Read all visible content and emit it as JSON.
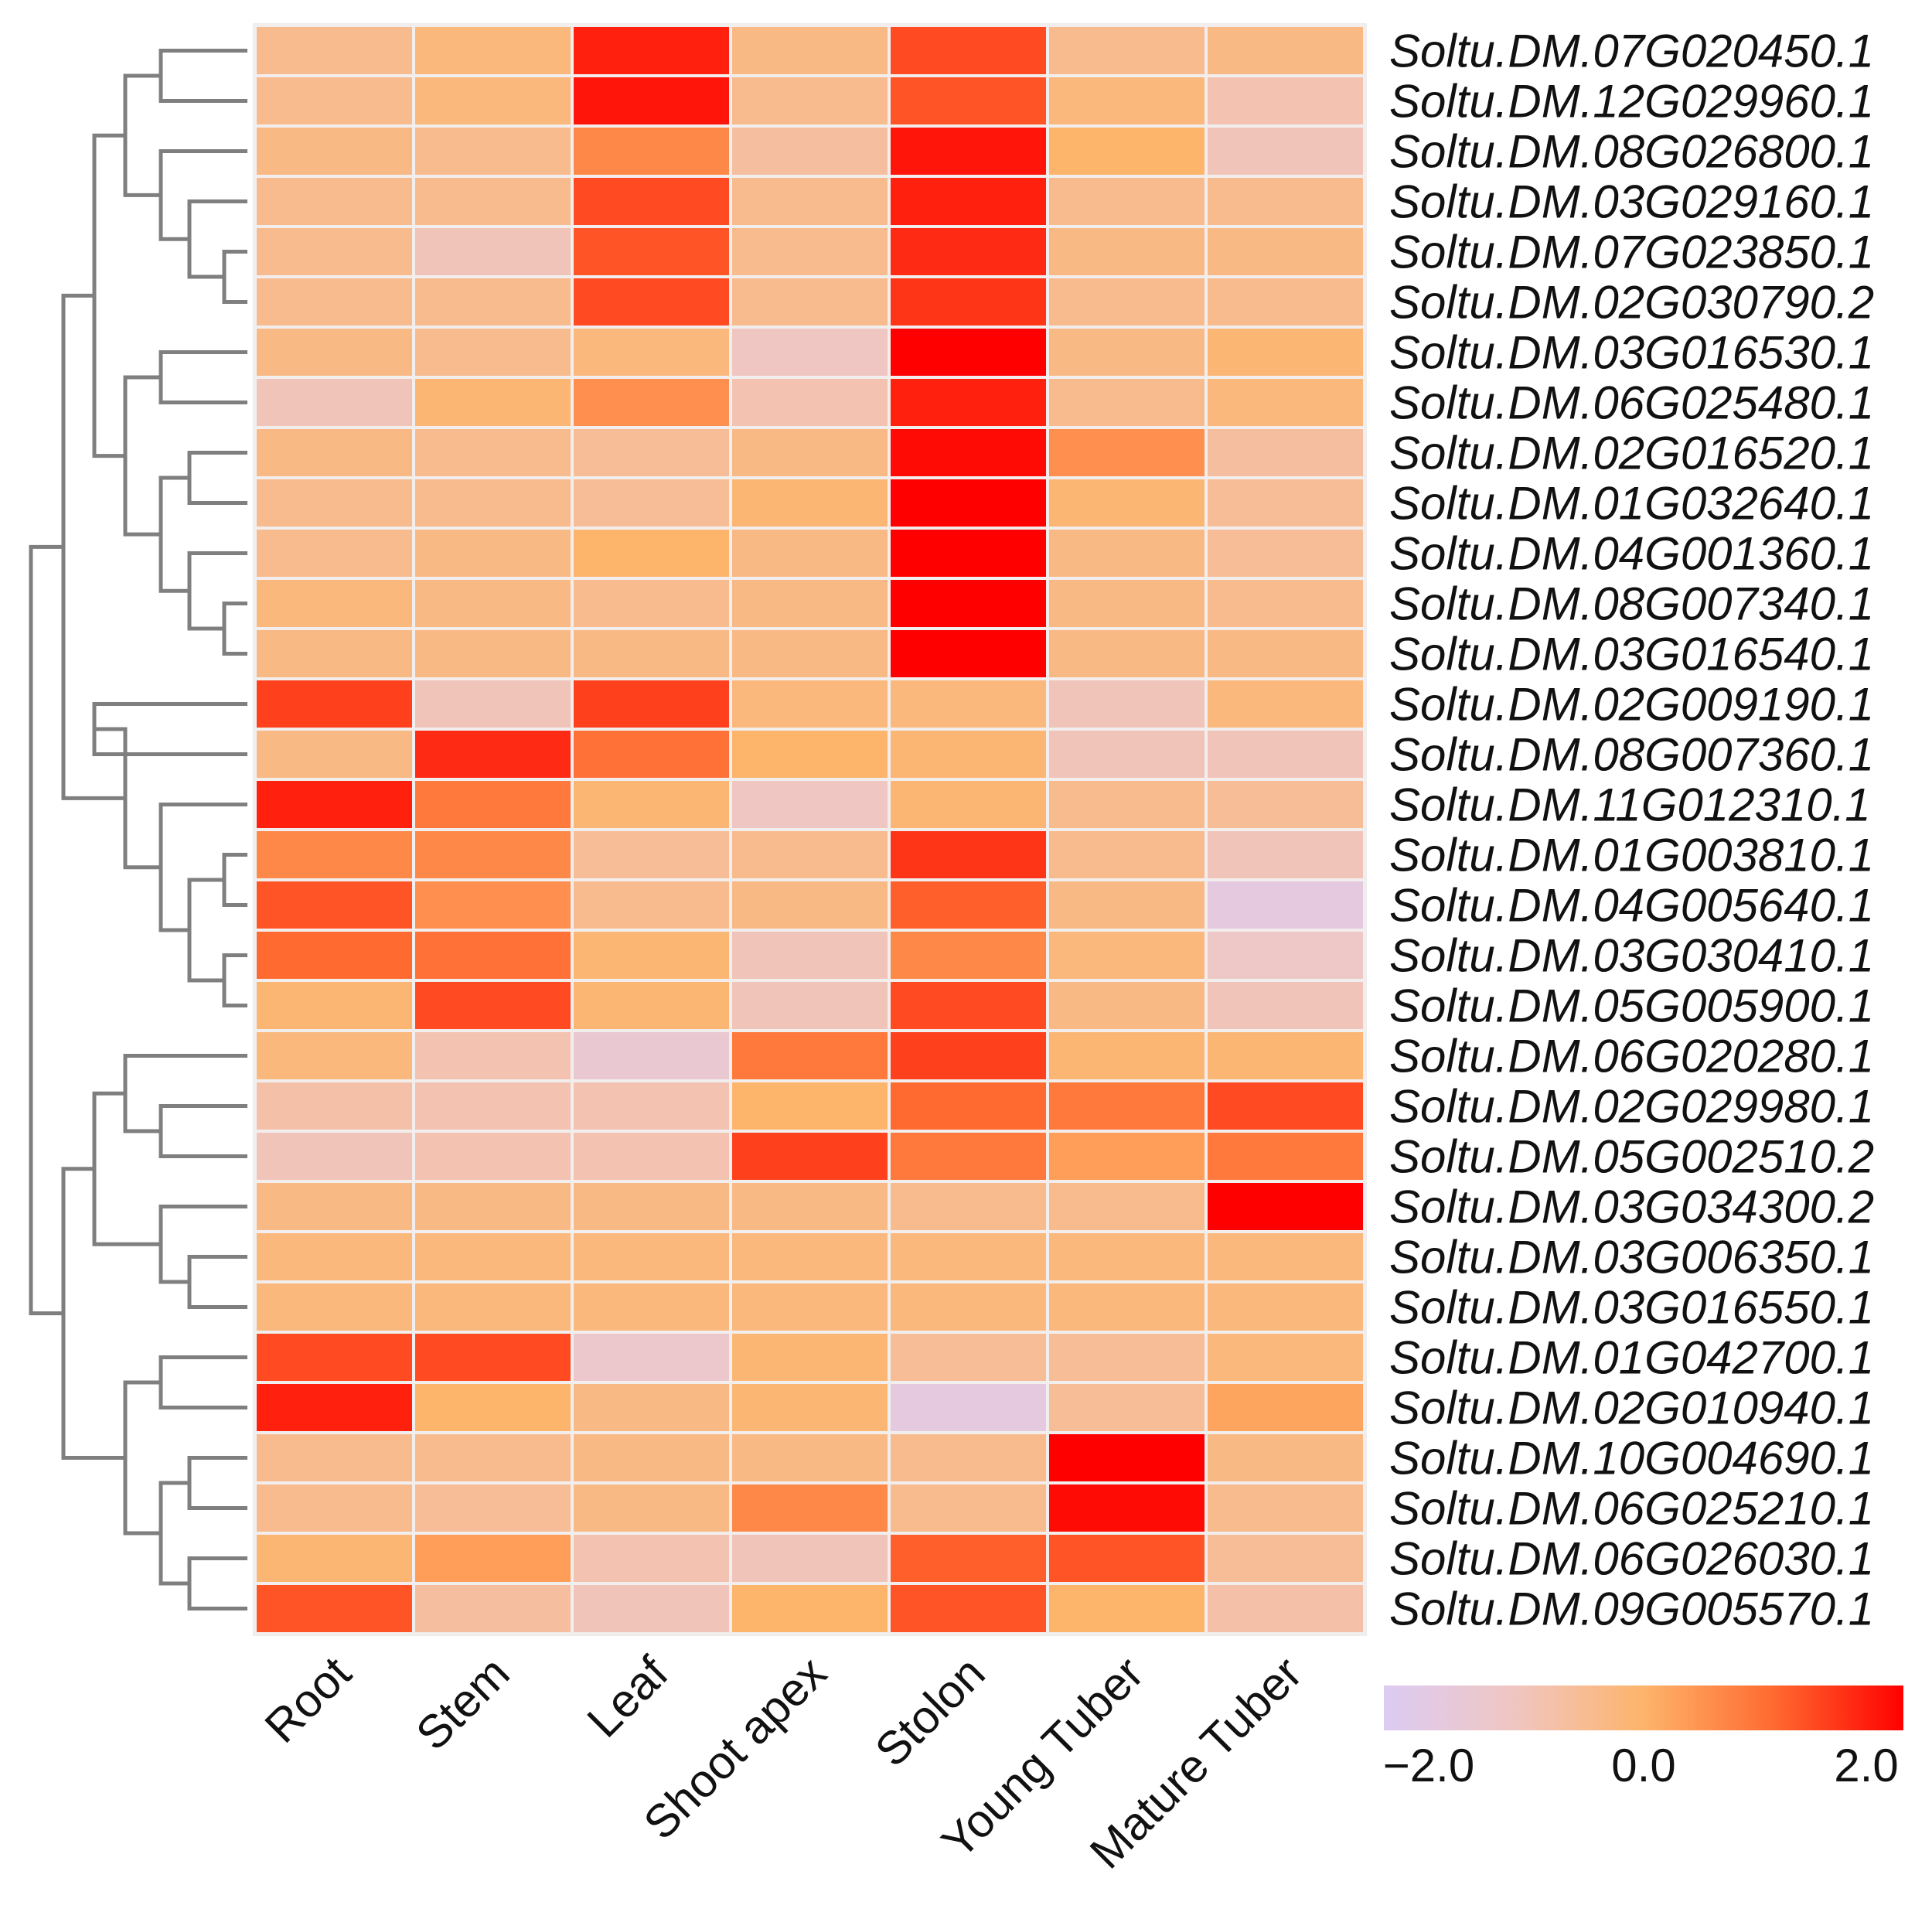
{
  "chart_data": {
    "type": "heatmap",
    "title": "",
    "columns": [
      "Root",
      "Stem",
      "Leaf",
      "Shoot apex",
      "Stolon",
      "Young Tuber",
      "Mature Tuber"
    ],
    "rows": [
      "Soltu.DM.07G020450.1",
      "Soltu.DM.12G029960.1",
      "Soltu.DM.08G026800.1",
      "Soltu.DM.03G029160.1",
      "Soltu.DM.07G023850.1",
      "Soltu.DM.02G030790.2",
      "Soltu.DM.03G016530.1",
      "Soltu.DM.06G025480.1",
      "Soltu.DM.02G016520.1",
      "Soltu.DM.01G032640.1",
      "Soltu.DM.04G001360.1",
      "Soltu.DM.08G007340.1",
      "Soltu.DM.03G016540.1",
      "Soltu.DM.02G009190.1",
      "Soltu.DM.08G007360.1",
      "Soltu.DM.11G012310.1",
      "Soltu.DM.01G003810.1",
      "Soltu.DM.04G005640.1",
      "Soltu.DM.03G030410.1",
      "Soltu.DM.05G005900.1",
      "Soltu.DM.06G020280.1",
      "Soltu.DM.02G029980.1",
      "Soltu.DM.05G002510.2",
      "Soltu.DM.03G034300.2",
      "Soltu.DM.03G006350.1",
      "Soltu.DM.03G016550.1",
      "Soltu.DM.01G042700.1",
      "Soltu.DM.02G010940.1",
      "Soltu.DM.10G004690.1",
      "Soltu.DM.06G025210.1",
      "Soltu.DM.06G026030.1",
      "Soltu.DM.09G005570.1"
    ],
    "values": [
      [
        -0.4,
        -0.2,
        1.7,
        -0.3,
        1.3,
        -0.4,
        -0.3
      ],
      [
        -0.4,
        -0.2,
        1.8,
        -0.4,
        1.2,
        -0.2,
        -0.8
      ],
      [
        -0.3,
        -0.4,
        0.6,
        -0.6,
        1.8,
        0.0,
        -0.9
      ],
      [
        -0.4,
        -0.4,
        1.3,
        -0.4,
        1.7,
        -0.4,
        -0.4
      ],
      [
        -0.4,
        -0.9,
        1.2,
        -0.4,
        1.6,
        -0.3,
        -0.3
      ],
      [
        -0.4,
        -0.4,
        1.3,
        -0.4,
        1.5,
        -0.4,
        -0.4
      ],
      [
        -0.3,
        -0.4,
        -0.2,
        -1.0,
        2.0,
        -0.3,
        -0.1
      ],
      [
        -0.9,
        -0.1,
        0.5,
        -0.8,
        1.7,
        -0.4,
        -0.2
      ],
      [
        -0.3,
        -0.4,
        -0.5,
        -0.3,
        1.9,
        0.5,
        -0.6
      ],
      [
        -0.4,
        -0.4,
        -0.5,
        -0.1,
        2.0,
        -0.1,
        -0.5
      ],
      [
        -0.4,
        -0.3,
        0.0,
        -0.3,
        2.0,
        -0.3,
        -0.5
      ],
      [
        -0.2,
        -0.3,
        -0.4,
        -0.3,
        2.0,
        -0.3,
        -0.4
      ],
      [
        -0.3,
        -0.3,
        -0.3,
        -0.3,
        2.0,
        -0.3,
        -0.3
      ],
      [
        1.4,
        -0.9,
        1.4,
        -0.2,
        -0.2,
        -0.9,
        -0.2
      ],
      [
        -0.3,
        1.6,
        0.9,
        0.0,
        -0.1,
        -0.9,
        -0.9
      ],
      [
        1.7,
        0.8,
        -0.1,
        -1.0,
        -0.1,
        -0.4,
        -0.5
      ],
      [
        0.6,
        0.6,
        -0.5,
        -0.4,
        1.5,
        -0.4,
        -0.9
      ],
      [
        1.2,
        0.5,
        -0.4,
        -0.3,
        1.1,
        -0.3,
        -1.6
      ],
      [
        1.0,
        0.9,
        -0.1,
        -0.9,
        0.6,
        -0.2,
        -1.1
      ],
      [
        -0.1,
        1.3,
        -0.1,
        -0.9,
        1.3,
        -0.3,
        -0.9
      ],
      [
        -0.2,
        -0.8,
        -1.3,
        0.8,
        1.4,
        -0.1,
        -0.1
      ],
      [
        -0.7,
        -0.8,
        -0.8,
        0.0,
        1.0,
        0.8,
        1.3
      ],
      [
        -0.9,
        -0.8,
        -0.8,
        1.4,
        0.8,
        0.3,
        0.8
      ],
      [
        -0.3,
        -0.3,
        -0.3,
        -0.3,
        -0.4,
        -0.4,
        2.0
      ],
      [
        -0.2,
        -0.2,
        -0.2,
        -0.2,
        -0.2,
        -0.2,
        -0.2
      ],
      [
        -0.2,
        -0.2,
        -0.2,
        -0.2,
        -0.2,
        -0.2,
        -0.2
      ],
      [
        1.3,
        1.3,
        -1.2,
        -0.1,
        -0.5,
        -0.5,
        -0.2
      ],
      [
        1.7,
        0.0,
        -0.3,
        -0.1,
        -1.6,
        -0.5,
        0.2
      ],
      [
        -0.4,
        -0.4,
        -0.3,
        -0.3,
        -0.4,
        2.0,
        -0.3
      ],
      [
        -0.4,
        -0.5,
        -0.3,
        0.6,
        -0.4,
        1.9,
        -0.4
      ],
      [
        -0.1,
        0.3,
        -0.8,
        -0.9,
        1.1,
        1.2,
        -0.5
      ],
      [
        1.2,
        -0.6,
        -0.9,
        0.0,
        1.2,
        0.0,
        -0.7
      ]
    ],
    "color_scale": {
      "min": -2.0,
      "max": 2.0,
      "stops": [
        {
          "value": -2.0,
          "color": "#dccbf3"
        },
        {
          "value": -1.0,
          "color": "#f0c6c2"
        },
        {
          "value": 0.0,
          "color": "#fdb46b"
        },
        {
          "value": 1.0,
          "color": "#ff6a30"
        },
        {
          "value": 2.0,
          "color": "#ff0000"
        }
      ],
      "ticks": [
        {
          "value": -2.0,
          "label": "−2.0"
        },
        {
          "value": 0.0,
          "label": "0.0"
        },
        {
          "value": 2.0,
          "label": "2.0"
        }
      ],
      "legend_position": "bottom-right"
    },
    "row_dendrogram": {
      "side": "left",
      "leaf_order": [
        0,
        1,
        2,
        3,
        4,
        5,
        6,
        7,
        8,
        9,
        10,
        11,
        12,
        13,
        14,
        15,
        16,
        17,
        18,
        19,
        20,
        21,
        22,
        23,
        24,
        25,
        26,
        27,
        28,
        29,
        30,
        31
      ],
      "merges": [
        [
          0,
          1,
          0.15
        ],
        [
          4,
          5,
          0.05
        ],
        [
          3,
          33,
          0.1
        ],
        [
          2,
          34,
          0.17
        ],
        [
          32,
          35,
          0.26
        ],
        [
          6,
          7,
          0.16
        ],
        [
          8,
          9,
          0.1
        ],
        [
          11,
          12,
          0.05
        ],
        [
          10,
          38,
          0.1
        ],
        [
          37,
          39,
          0.2
        ],
        [
          36,
          40,
          0.26
        ],
        [
          41,
          39.5,
          0.0
        ]
      ],
      "line_color": "#7f7f7f"
    },
    "cell_border_color": "#f2eeee",
    "frame_color": "#ececec"
  }
}
